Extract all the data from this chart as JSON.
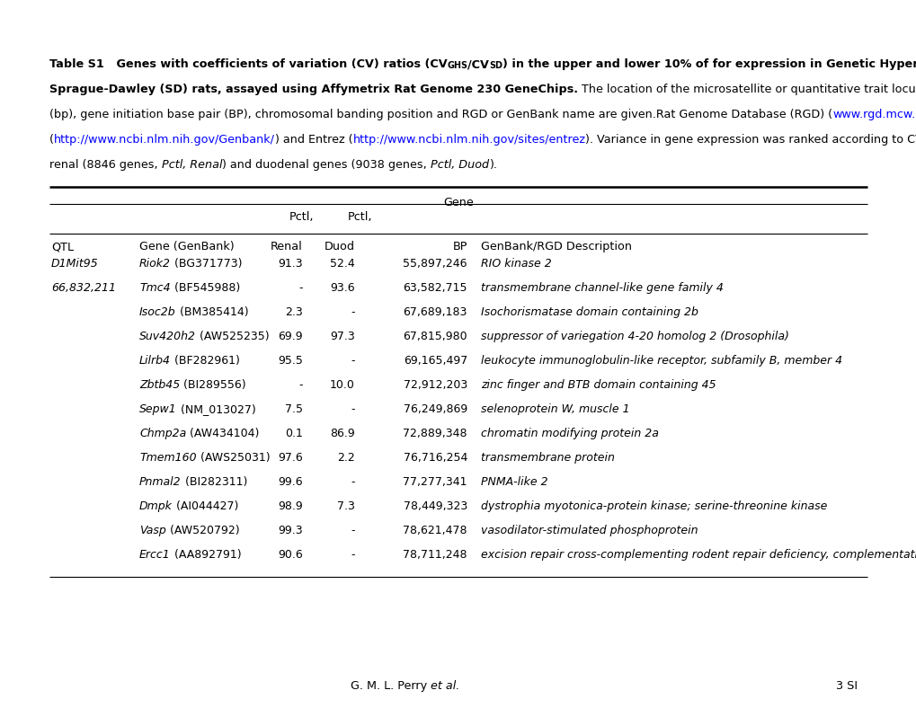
{
  "rows": [
    [
      "D1Mit95",
      "Riok2",
      "BG371773",
      "91.3",
      "52.4",
      "55,897,246",
      "RIO kinase 2"
    ],
    [
      "66,832,211",
      "Tmc4",
      "BF545988",
      "-",
      "93.6",
      "63,582,715",
      "transmembrane channel-like gene family 4"
    ],
    [
      "",
      "Isoc2b",
      "BM385414",
      "2.3",
      "-",
      "67,689,183",
      "Isochorismatase domain containing 2b"
    ],
    [
      "",
      "Suv420h2",
      "AW525235",
      "69.9",
      "97.3",
      "67,815,980",
      "suppressor of variegation 4-20 homolog 2 (Drosophila)"
    ],
    [
      "",
      "Lilrb4",
      "BF282961",
      "95.5",
      "-",
      "69,165,497",
      "leukocyte immunoglobulin-like receptor, subfamily B, member 4"
    ],
    [
      "",
      "Zbtb45",
      "BI289556",
      "-",
      "10.0",
      "72,912,203",
      "zinc finger and BTB domain containing 45"
    ],
    [
      "",
      "Sepw1",
      "NM_013027",
      "7.5",
      "-",
      "76,249,869",
      "selenoprotein W, muscle 1"
    ],
    [
      "",
      "Chmp2a",
      "AW434104",
      "0.1",
      "86.9",
      "72,889,348",
      "chromatin modifying protein 2a"
    ],
    [
      "",
      "Tmem160",
      "AWS25031",
      "97.6",
      "2.2",
      "76,716,254",
      "transmembrane protein"
    ],
    [
      "",
      "Pnmal2",
      "BI282311",
      "99.6",
      "-",
      "77,277,341",
      "PNMA-like 2"
    ],
    [
      "",
      "Dmpk",
      "AI044427",
      "98.9",
      "7.3",
      "78,449,323",
      "dystrophia myotonica-protein kinase; serine-threonine kinase"
    ],
    [
      "",
      "Vasp",
      "AW520792",
      "99.3",
      "-",
      "78,621,478",
      "vasodilator-stimulated phosphoprotein"
    ],
    [
      "",
      "Ercc1",
      "AA892791",
      "90.6",
      "-",
      "78,711,248",
      "excision repair cross-complementing rodent repair deficiency, complementation"
    ]
  ],
  "bg_color": "#ffffff"
}
